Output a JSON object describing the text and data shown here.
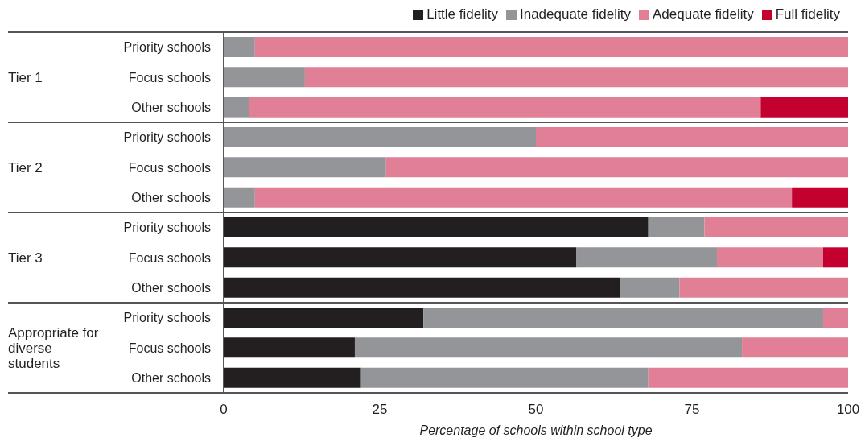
{
  "chart_data": {
    "type": "bar",
    "orientation": "horizontal",
    "stacked": true,
    "categories": [
      "Priority schools",
      "Focus schools",
      "Other schools",
      "Priority schools",
      "Focus schools",
      "Other schools",
      "Priority schools",
      "Focus schools",
      "Other schools",
      "Priority schools",
      "Focus schools",
      "Other schools"
    ],
    "series": [
      {
        "name": "Little fidelity",
        "color": "#231f20",
        "values": [
          0,
          0,
          0,
          0,
          0,
          0,
          68,
          56.5,
          63.5,
          32,
          21,
          22
        ]
      },
      {
        "name": "Inadequate fidelity",
        "color": "#939598",
        "values": [
          5,
          13,
          4,
          50,
          26,
          5,
          9,
          22.5,
          9.5,
          64,
          62,
          46
        ]
      },
      {
        "name": "Adequate fidelity",
        "color": "#e07f95",
        "values": [
          95,
          87,
          82,
          50,
          74,
          86,
          23,
          17,
          27,
          4,
          17,
          32
        ]
      },
      {
        "name": "Full fidelity",
        "color": "#c4002f",
        "values": [
          0,
          0,
          14,
          0,
          0,
          9,
          0,
          4,
          0,
          0,
          0,
          0
        ]
      }
    ],
    "xlim": [
      0,
      100
    ],
    "xticks": [
      0,
      25,
      50,
      75,
      100
    ],
    "xlabel": "Percentage of schools within school type",
    "legend": "top right",
    "annotations": [
      "Tier 1",
      "Tier 2",
      "Tier 3",
      "Appropriate for diverse students"
    ]
  }
}
